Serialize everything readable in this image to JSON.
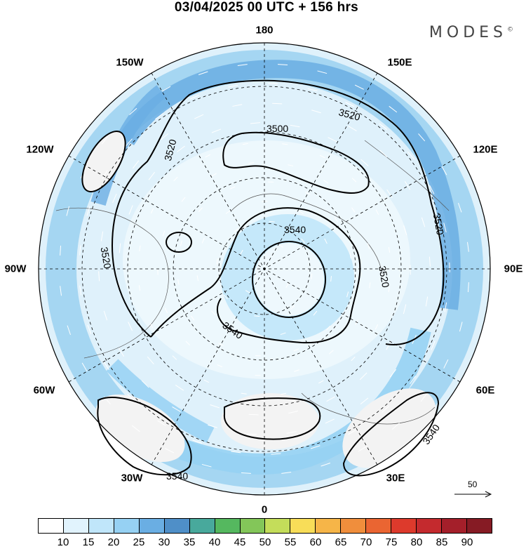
{
  "title": "03/04/2025  00 UTC  + 156 hrs",
  "brand": "MODES",
  "brand_mark": "©",
  "longitude_labels": [
    {
      "id": "lon-180",
      "text": "180"
    },
    {
      "id": "lon-150w",
      "text": "150W"
    },
    {
      "id": "lon-150e",
      "text": "150E"
    },
    {
      "id": "lon-120w",
      "text": "120W"
    },
    {
      "id": "lon-120e",
      "text": "120E"
    },
    {
      "id": "lon-90w",
      "text": "90W"
    },
    {
      "id": "lon-90e",
      "text": "90E"
    },
    {
      "id": "lon-60w",
      "text": "60W"
    },
    {
      "id": "lon-60e",
      "text": "60E"
    },
    {
      "id": "lon-30w",
      "text": "30W"
    },
    {
      "id": "lon-30e",
      "text": "30E"
    },
    {
      "id": "lon-0",
      "text": "0"
    }
  ],
  "contour_labels": [
    "3500",
    "3520",
    "3520",
    "3520",
    "3520",
    "3520",
    "3540",
    "3540",
    "3540",
    "3540"
  ],
  "reference_vector": {
    "label": "50"
  },
  "colorbar": {
    "colors": [
      "#ffffff",
      "#e1f3fd",
      "#c0e6fa",
      "#96d1f3",
      "#6aaee3",
      "#4f8fc8",
      "#48a99c",
      "#55b85f",
      "#83c659",
      "#c4dd5a",
      "#f8dd58",
      "#f6b548",
      "#f08e3c",
      "#ea6532",
      "#dd3a2c",
      "#c42a2e",
      "#a41f2a",
      "#861b24"
    ],
    "ticks": [
      "10",
      "15",
      "20",
      "25",
      "30",
      "35",
      "40",
      "45",
      "50",
      "55",
      "60",
      "65",
      "70",
      "75",
      "80",
      "85",
      "90"
    ]
  }
}
